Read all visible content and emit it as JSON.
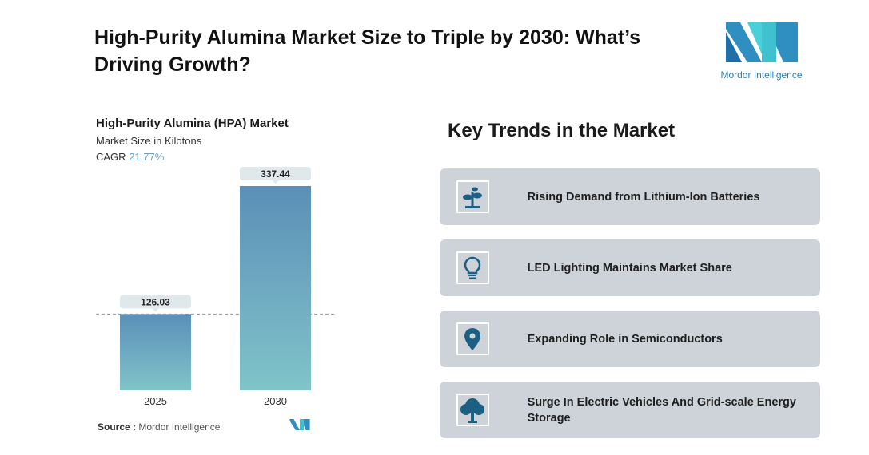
{
  "title": "High-Purity Alumina Market Size to Triple by 2030: What’s Driving Growth?",
  "logo": {
    "text": "Mordor Intelligence"
  },
  "chart_data": {
    "type": "bar",
    "title": "High-Purity Alumina (HPA) Market",
    "subtitle": "Market Size in Kilotons",
    "cagr_label": "CAGR",
    "cagr_value": "21.77%",
    "categories": [
      "2025",
      "2030"
    ],
    "values": [
      126.03,
      337.44
    ],
    "value_labels": [
      "126.03",
      "337.44"
    ],
    "ylim": [
      0,
      337.44
    ],
    "grid": false,
    "colors": {
      "top": "#5b8fb8",
      "bottom": "#80c4c9"
    }
  },
  "source": {
    "label": "Source :",
    "value": "Mordor Intelligence"
  },
  "trends": {
    "heading": "Key Trends in the Market",
    "items": [
      {
        "label": "Rising Demand from Lithium-Ion Batteries",
        "icon": "plant-icon"
      },
      {
        "label": "LED Lighting Maintains Market Share",
        "icon": "lightbulb-icon"
      },
      {
        "label": "Expanding Role in Semiconductors",
        "icon": "location-pin-icon"
      },
      {
        "label": "Surge In Electric Vehicles And Grid-scale Energy Storage",
        "icon": "tree-icon"
      }
    ]
  },
  "icon_color": "#1b5f82"
}
